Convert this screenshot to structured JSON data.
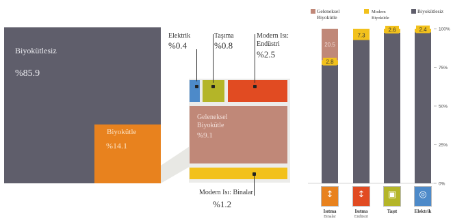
{
  "colors": {
    "main": "#5f5e6b",
    "biomass": "#e8821e",
    "traditional": "#c08878",
    "modern_yellow": "#f2c11c",
    "electric_blue": "#4d8ac9",
    "transport_green": "#b4b528",
    "industry_red": "#e14b22",
    "heating_orange": "#e8821e"
  },
  "left": {
    "main_label": "Biyokütlesiz",
    "main_value": "%85.9",
    "biomass_label": "Biyokütle",
    "biomass_value": "%14.1"
  },
  "middle": {
    "electricity": {
      "label": "Elektrik",
      "value": "%0.4"
    },
    "transport": {
      "label": "Taşıma",
      "value": "%0.8"
    },
    "industry": {
      "label_line1": "Modern Isı:",
      "label_line2": "Endüstri",
      "value": "%2.5"
    },
    "traditional": {
      "label_line1": "Geleneksel",
      "label_line2": "Biyokütle",
      "value": "%9.1"
    },
    "buildings": {
      "label": "Modern Isı: Binalar",
      "value": "%1.2"
    }
  },
  "chart_data": {
    "type": "bar",
    "stacked": true,
    "categories": [
      "Isıtma Binalar",
      "Isıtma Endüstri",
      "Taşıt",
      "Elektrik"
    ],
    "series": [
      {
        "name": "Biyokütlesiz",
        "values": [
          76.7,
          92.7,
          97.4,
          97.6
        ]
      },
      {
        "name": "Modern Biyokütle",
        "values": [
          2.8,
          7.3,
          2.6,
          2.4
        ]
      },
      {
        "name": "Geleneksel Biyokütle",
        "values": [
          20.5,
          0,
          0,
          0
        ]
      }
    ],
    "data_labels": [
      {
        "category": "Isıtma Binalar",
        "traditional": "20.5",
        "modern": "2.8"
      },
      {
        "category": "Isıtma Endüstri",
        "modern": "7.3"
      },
      {
        "category": "Taşıt",
        "modern": "2.6"
      },
      {
        "category": "Elektrik",
        "modern": "2.4"
      }
    ],
    "ylim": [
      0,
      100
    ],
    "yticks": [
      "0%",
      "25%",
      "50%",
      "75%",
      "100%"
    ],
    "legend": {
      "placement": "top",
      "items": [
        {
          "line1": "Geleneksel",
          "line2": "Biyokütle"
        },
        {
          "line1": "Modern",
          "line2": "Biyokütle"
        },
        {
          "line1": "Biyokütlesiz",
          "line2": ""
        }
      ]
    },
    "category_labels": [
      {
        "line1": "Isıtma",
        "line2": "Binalar"
      },
      {
        "line1": "Isıtma",
        "line2": "Endüstri"
      },
      {
        "line1": "Taşıt",
        "line2": ""
      },
      {
        "line1": "Elektrik",
        "line2": ""
      }
    ],
    "category_icons": [
      "thermometer-icon",
      "thermometer-icon",
      "car-icon",
      "power-icon"
    ]
  }
}
